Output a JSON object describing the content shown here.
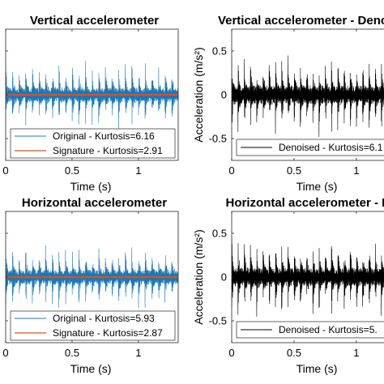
{
  "chart_data": [
    {
      "type": "line",
      "title": "Vertical accelerometer",
      "xlabel": "Time (s)",
      "ylabel": "",
      "xlim": [
        0,
        1.3
      ],
      "ylim": [
        -0.75,
        0.75
      ],
      "x_ticks": [
        "0",
        "0.5",
        "1"
      ],
      "y_ticks": [],
      "grid": false,
      "legend_position": "bottom",
      "series": [
        {
          "name": "Original - Kurtosis=6.16",
          "color": "#1f77b4",
          "signal": "impulsive vibration",
          "pulse_count": 26,
          "amplitude": 0.35,
          "noise_floor": 0.08
        },
        {
          "name": "Signature - Kurtosis=2.91",
          "color": "#d95319",
          "signal": "flat",
          "amplitude": 0.01
        }
      ]
    },
    {
      "type": "line",
      "title": "Vertical accelerometer - Denoised",
      "xlabel": "Time (s)",
      "ylabel": "Acceleration (m/s²)",
      "xlim": [
        0,
        1.3
      ],
      "ylim": [
        -0.75,
        0.75
      ],
      "x_ticks": [
        "0",
        "0.5",
        "1"
      ],
      "y_ticks": [
        "0.5",
        "0",
        "-0.5"
      ],
      "grid": false,
      "legend_position": "bottom",
      "series": [
        {
          "name": "Denoised - Kurtosis=6.1",
          "color": "#000000",
          "signal": "impulsive vibration",
          "pulse_count": 26,
          "amplitude": 0.42,
          "noise_floor": 0.1
        }
      ]
    },
    {
      "type": "line",
      "title": "Horizontal accelerometer",
      "xlabel": "Time (s)",
      "ylabel": "",
      "xlim": [
        0,
        1.3
      ],
      "ylim": [
        -0.75,
        0.75
      ],
      "x_ticks": [
        "0",
        "0.5",
        "1"
      ],
      "y_ticks": [],
      "grid": false,
      "legend_position": "bottom",
      "series": [
        {
          "name": "Original - Kurtosis=5.93",
          "color": "#1f77b4",
          "signal": "impulsive vibration",
          "pulse_count": 26,
          "amplitude": 0.33,
          "noise_floor": 0.08
        },
        {
          "name": "Signature - Kurtosis=2.87",
          "color": "#d95319",
          "signal": "flat",
          "amplitude": 0.01
        }
      ]
    },
    {
      "type": "line",
      "title": "Horizontal accelerometer - Den",
      "xlabel": "Time (s)",
      "ylabel": "Acceleration (m/s²)",
      "xlim": [
        0,
        1.3
      ],
      "ylim": [
        -0.75,
        0.75
      ],
      "x_ticks": [
        "0",
        "0.5",
        "1"
      ],
      "y_ticks": [
        "0.5",
        "0",
        "-0.5"
      ],
      "grid": false,
      "legend_position": "bottom",
      "series": [
        {
          "name": "Denoised - Kurtosis=5.",
          "color": "#000000",
          "signal": "impulsive vibration",
          "pulse_count": 26,
          "amplitude": 0.42,
          "noise_floor": 0.1
        }
      ]
    }
  ]
}
